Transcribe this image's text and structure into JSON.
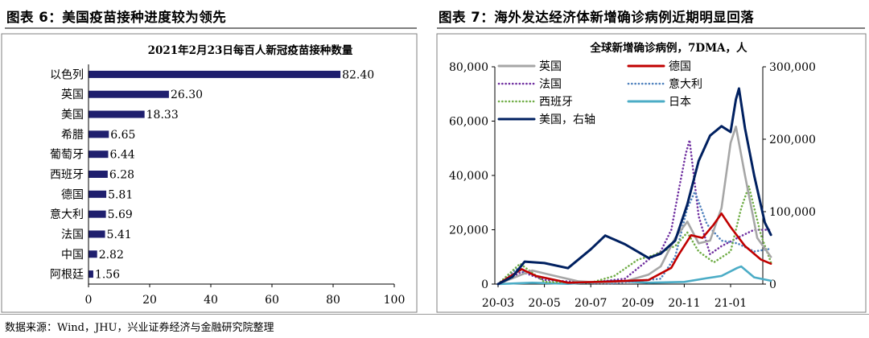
{
  "figure6": {
    "title": "图表 6：美国疫苗接种进度较为领先"
  },
  "figure7": {
    "title": "图表 7：海外发达经济体新增确诊病例近期明显回落"
  },
  "source": "数据来源：Wind，JHU，兴业证券经济与金融研究院整理",
  "chart_data": [
    {
      "type": "bar",
      "orientation": "horizontal",
      "title": "2021年2月23日每百人新冠疫苗接种数量",
      "categories": [
        "以色列",
        "英国",
        "美国",
        "希腊",
        "葡萄牙",
        "西班牙",
        "德国",
        "意大利",
        "法国",
        "中国",
        "阿根廷"
      ],
      "values": [
        82.4,
        26.3,
        18.33,
        6.65,
        6.44,
        6.28,
        5.81,
        5.69,
        5.41,
        2.82,
        1.56
      ],
      "value_labels": [
        "82.40",
        "26.30",
        "18.33",
        "6.65",
        "6.44",
        "6.28",
        "5.81",
        "5.69",
        "5.41",
        "2.82",
        "1.56"
      ],
      "xlim": [
        0,
        100
      ],
      "xticks": [
        "0",
        "20",
        "40",
        "60",
        "80",
        "100"
      ],
      "bar_color": "#1f1f6e",
      "grid": false
    },
    {
      "type": "line",
      "title": "全球新增确诊病例，7DMA，人",
      "x_ticks": [
        "20-03",
        "20-05",
        "20-07",
        "20-09",
        "20-11",
        "21-01"
      ],
      "ylim_left": [
        0,
        80000
      ],
      "yticks_left": [
        "0",
        "20,000",
        "40,000",
        "60,000",
        "80,000"
      ],
      "ylim_right": [
        0,
        300000
      ],
      "yticks_right": [
        "0",
        "100,000",
        "200,000",
        "300,000"
      ],
      "legend_position": "top-left",
      "grid": false,
      "series": [
        {
          "name": "英国",
          "axis": "left",
          "color": "#a6a6a6",
          "style": "solid",
          "x": [
            "2020-03-01",
            "2020-04-01",
            "2020-04-15",
            "2020-05-15",
            "2020-06-15",
            "2020-07-15",
            "2020-08-15",
            "2020-09-15",
            "2020-10-01",
            "2020-10-20",
            "2020-11-05",
            "2020-11-20",
            "2020-12-05",
            "2020-12-20",
            "2021-01-01",
            "2021-01-08",
            "2021-01-20",
            "2021-02-05",
            "2021-02-23"
          ],
          "y": [
            0,
            3500,
            5000,
            3000,
            1000,
            500,
            1000,
            3500,
            6500,
            17000,
            23000,
            15000,
            16000,
            28000,
            52000,
            58000,
            40000,
            17000,
            10000
          ]
        },
        {
          "name": "德国",
          "axis": "left",
          "color": "#c00000",
          "style": "solid",
          "x": [
            "2020-03-01",
            "2020-04-01",
            "2020-04-20",
            "2020-06-01",
            "2020-08-01",
            "2020-09-15",
            "2020-10-15",
            "2020-10-25",
            "2020-11-10",
            "2020-11-25",
            "2020-12-10",
            "2020-12-20",
            "2021-01-01",
            "2021-01-20",
            "2021-02-10",
            "2021-02-23"
          ],
          "y": [
            0,
            5500,
            3000,
            500,
            1000,
            1500,
            6000,
            11000,
            18000,
            17000,
            22000,
            26000,
            21000,
            14000,
            9000,
            7500
          ]
        },
        {
          "name": "法国",
          "axis": "left",
          "color": "#7030a0",
          "style": "dotted",
          "x": [
            "2020-03-01",
            "2020-04-01",
            "2020-05-01",
            "2020-07-01",
            "2020-08-15",
            "2020-09-15",
            "2020-10-01",
            "2020-10-15",
            "2020-10-25",
            "2020-11-03",
            "2020-11-08",
            "2020-11-20",
            "2020-12-05",
            "2020-12-20",
            "2021-01-10",
            "2021-02-01",
            "2021-02-23"
          ],
          "y": [
            0,
            4500,
            1500,
            500,
            2000,
            9000,
            12000,
            20000,
            35000,
            48000,
            53000,
            25000,
            11000,
            14000,
            17000,
            20000,
            20000
          ]
        },
        {
          "name": "意大利",
          "axis": "left",
          "color": "#4f81bd",
          "style": "dotted",
          "x": [
            "2020-03-01",
            "2020-03-25",
            "2020-04-20",
            "2020-06-01",
            "2020-08-01",
            "2020-10-01",
            "2020-10-20",
            "2020-11-05",
            "2020-11-15",
            "2020-12-01",
            "2020-12-20",
            "2021-01-10",
            "2021-02-01",
            "2021-02-23"
          ],
          "y": [
            0,
            5500,
            3000,
            400,
            300,
            2000,
            10000,
            28000,
            34000,
            22000,
            16000,
            15000,
            12000,
            13000
          ]
        },
        {
          "name": "西班牙",
          "axis": "left",
          "color": "#70ad47",
          "style": "dotted",
          "x": [
            "2020-03-01",
            "2020-03-30",
            "2020-05-01",
            "2020-07-01",
            "2020-08-01",
            "2020-09-01",
            "2020-09-20",
            "2020-10-20",
            "2020-11-05",
            "2020-11-20",
            "2020-12-10",
            "2021-01-01",
            "2021-01-15",
            "2021-01-25",
            "2021-02-10",
            "2021-02-23"
          ],
          "y": [
            0,
            7500,
            800,
            500,
            3000,
            9000,
            10500,
            14000,
            19000,
            12000,
            8000,
            12000,
            28000,
            36000,
            18000,
            8000
          ]
        },
        {
          "name": "日本",
          "axis": "left",
          "color": "#4bacc6",
          "style": "solid",
          "x": [
            "2020-03-01",
            "2020-04-15",
            "2020-06-01",
            "2020-08-01",
            "2020-09-15",
            "2020-11-01",
            "2020-12-01",
            "2020-12-20",
            "2021-01-10",
            "2021-01-15",
            "2021-02-01",
            "2021-02-23"
          ],
          "y": [
            0,
            500,
            100,
            1200,
            500,
            800,
            2200,
            3000,
            6000,
            6500,
            2500,
            1200
          ]
        },
        {
          "name": "美国，右轴",
          "axis": "right",
          "color": "#002060",
          "style": "solid",
          "x": [
            "2020-03-01",
            "2020-03-20",
            "2020-04-05",
            "2020-05-01",
            "2020-06-01",
            "2020-07-01",
            "2020-07-20",
            "2020-08-15",
            "2020-09-15",
            "2020-10-01",
            "2020-10-20",
            "2020-11-05",
            "2020-11-20",
            "2020-12-05",
            "2020-12-20",
            "2021-01-01",
            "2021-01-08",
            "2021-01-12",
            "2021-01-20",
            "2021-02-01",
            "2021-02-15",
            "2021-02-23"
          ],
          "y": [
            0,
            10000,
            31000,
            29000,
            22000,
            48000,
            67000,
            55000,
            36000,
            42000,
            60000,
            110000,
            170000,
            205000,
            218000,
            210000,
            255000,
            270000,
            215000,
            150000,
            85000,
            68000
          ]
        }
      ]
    }
  ]
}
